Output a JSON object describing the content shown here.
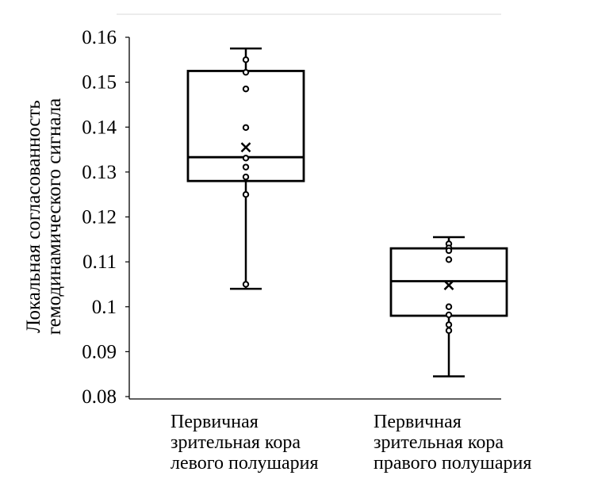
{
  "chart_data": {
    "type": "box",
    "ylabel": [
      "Локальная согласованность",
      "гемодинамического сигнала"
    ],
    "xlabel": "",
    "ylim": [
      0.08,
      0.16
    ],
    "yticks": [
      {
        "value": 0.08,
        "label": "0.08"
      },
      {
        "value": 0.09,
        "label": "0.09"
      },
      {
        "value": 0.1,
        "label": "0.1"
      },
      {
        "value": 0.11,
        "label": "0.11"
      },
      {
        "value": 0.12,
        "label": "0.12"
      },
      {
        "value": 0.13,
        "label": "0.13"
      },
      {
        "value": 0.14,
        "label": "0.14"
      },
      {
        "value": 0.15,
        "label": "0.15"
      },
      {
        "value": 0.16,
        "label": "0.16"
      }
    ],
    "grid": false,
    "legend": "none",
    "boxes": [
      {
        "category": [
          "Первичная",
          "зрительная кора",
          "левого полушария"
        ],
        "whisker_low": 0.104,
        "q1": 0.128,
        "median": 0.1333,
        "q3": 0.1525,
        "whisker_high": 0.1575,
        "mean": 0.1355,
        "points": [
          0.155,
          0.1522,
          0.1485,
          0.1399,
          0.1331,
          0.1311,
          0.1289,
          0.125,
          0.105
        ]
      },
      {
        "category": [
          "Первичная",
          "зрительная кора",
          "правого полушария"
        ],
        "whisker_low": 0.0845,
        "q1": 0.098,
        "median": 0.1057,
        "q3": 0.113,
        "whisker_high": 0.1155,
        "mean": 0.1048,
        "points": [
          0.114,
          0.1131,
          0.1125,
          0.1105,
          0.1,
          0.0982,
          0.096,
          0.0947
        ]
      }
    ],
    "colors": {
      "ink": "#000000",
      "top_line": "#e6e6e6",
      "background": "#ffffff"
    }
  }
}
